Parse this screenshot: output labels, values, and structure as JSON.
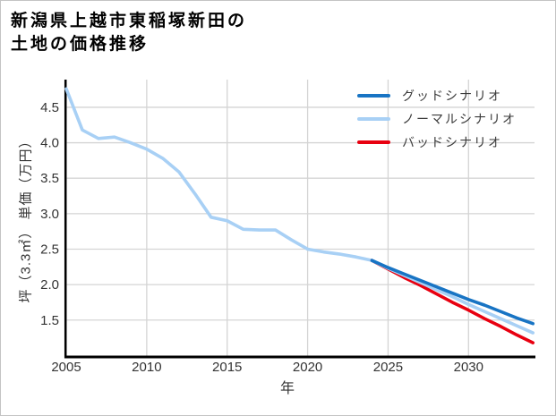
{
  "chart_data": {
    "type": "line",
    "title": "新潟県上越市東稲塚新田の土地の価格推移",
    "title_lines": [
      "新潟県上越市東稲塚新田の",
      "土地の価格推移"
    ],
    "xlabel": "年",
    "ylabel": "坪（3.3㎡） 単価（万円）",
    "x_ticks": [
      2005,
      2010,
      2015,
      2020,
      2025,
      2030
    ],
    "y_ticks": [
      1.5,
      2.0,
      2.5,
      3.0,
      3.5,
      4.0,
      4.5
    ],
    "xlim": [
      2005,
      2034.1
    ],
    "ylim": [
      0.98,
      4.89
    ],
    "grid": true,
    "legend_position": "top-right",
    "history": {
      "id": "history",
      "name": "",
      "color": "#a8d0f5",
      "x": [
        2005,
        2006,
        2007,
        2008,
        2009,
        2010,
        2011,
        2012,
        2013,
        2014,
        2015,
        2016,
        2017,
        2018,
        2019,
        2020,
        2021,
        2022,
        2023,
        2024
      ],
      "values": [
        4.76,
        4.18,
        4.06,
        4.08,
        4.0,
        3.91,
        3.78,
        3.59,
        3.28,
        2.95,
        2.9,
        2.78,
        2.77,
        2.77,
        2.63,
        2.5,
        2.46,
        2.43,
        2.39,
        2.34
      ]
    },
    "series": [
      {
        "id": "good",
        "name": "グッドシナリオ",
        "color": "#1874c4",
        "x": [
          2024,
          2025,
          2026,
          2027,
          2028,
          2029,
          2030,
          2031,
          2032,
          2033,
          2034
        ],
        "values": [
          2.34,
          2.24,
          2.15,
          2.06,
          1.97,
          1.88,
          1.79,
          1.71,
          1.62,
          1.53,
          1.45
        ]
      },
      {
        "id": "normal",
        "name": "ノーマルシナリオ",
        "color": "#a8d0f5",
        "x": [
          2024,
          2025,
          2026,
          2027,
          2028,
          2029,
          2030,
          2031,
          2032,
          2033,
          2034
        ],
        "values": [
          2.34,
          2.23,
          2.13,
          2.03,
          1.93,
          1.83,
          1.72,
          1.62,
          1.52,
          1.42,
          1.32
        ]
      },
      {
        "id": "bad",
        "name": "バッドシナリオ",
        "color": "#e80010",
        "x": [
          2024,
          2025,
          2026,
          2027,
          2028,
          2029,
          2030,
          2031,
          2032,
          2033,
          2034
        ],
        "values": [
          2.34,
          2.22,
          2.1,
          1.99,
          1.87,
          1.75,
          1.64,
          1.52,
          1.41,
          1.29,
          1.18
        ]
      }
    ],
    "colors": {
      "grid": "#d4d4d4",
      "axis": "#000000",
      "tick_label": "#333333",
      "background": "#ffffff",
      "border": "#c4c4c4"
    }
  }
}
